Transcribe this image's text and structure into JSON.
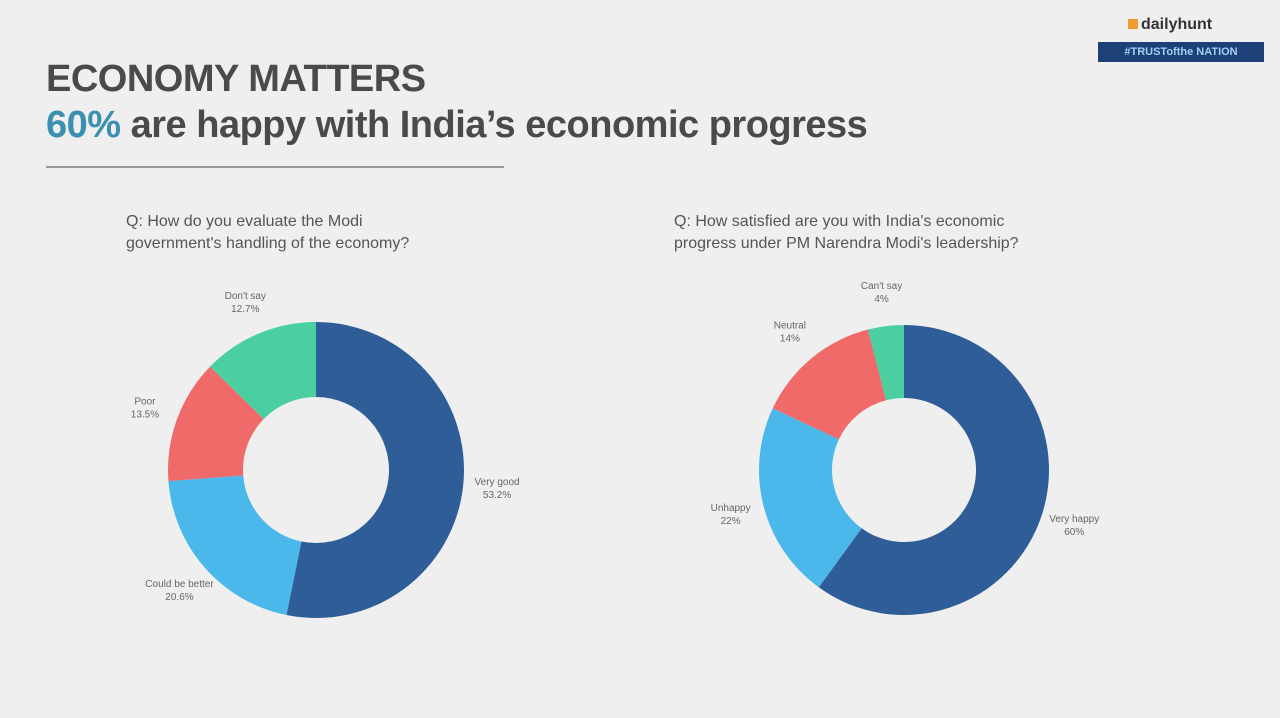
{
  "header": {
    "title": "ECONOMY MATTERS",
    "headline_highlight": "60%",
    "headline_rest": "are happy with India’s economic progress",
    "logo": "dailyhunt",
    "banner": "#TRUSTofthe NATION"
  },
  "chart_data": [
    {
      "type": "donut",
      "title": [
        "Q: How do you evaluate the Modi",
        "government's handling of the economy?"
      ],
      "categories": [
        "Very good",
        "Could be better",
        "Poor",
        "Don't say"
      ],
      "values": [
        53.2,
        20.6,
        13.5,
        12.7
      ],
      "value_labels": [
        "53.2%",
        "20.6%",
        "13.5%",
        "12.7%"
      ],
      "colors": [
        "#2f5d98",
        "#4ab8ea",
        "#f06a6a",
        "#4ccfa0"
      ]
    },
    {
      "type": "donut",
      "title": [
        "Q: How satisfied are you with India's economic",
        "progress under PM Narendra Modi's leadership?"
      ],
      "categories": [
        "Very happy",
        "Unhappy",
        "Neutral",
        "Can't say"
      ],
      "values": [
        60,
        22,
        14,
        4
      ],
      "value_labels": [
        "60%",
        "22%",
        "14%",
        "4%"
      ],
      "colors": [
        "#2f5d98",
        "#4ab8ea",
        "#f06a6a",
        "#4ccfa0"
      ]
    }
  ]
}
